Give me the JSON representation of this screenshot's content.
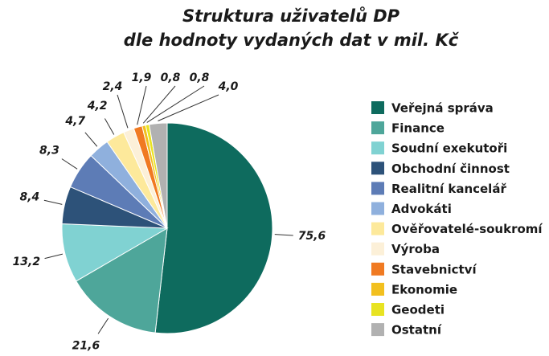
{
  "chart_data": {
    "type": "pie",
    "title": "Struktura uživatelů DP",
    "subtitle": "dle hodnoty vydaných dat v mil. Kč",
    "categories": [
      "Veřejná správa",
      "Finance",
      "Soudní exekutoři",
      "Obchodní činnost",
      "Realitní kancelář",
      "Advokáti",
      "Ověřovatelé-soukromí",
      "Výroba",
      "Stavebnictví",
      "Ekonomie",
      "Geodeti",
      "Ostatní"
    ],
    "values": [
      75.6,
      21.6,
      13.2,
      8.4,
      8.3,
      4.7,
      4.2,
      2.4,
      1.9,
      0.8,
      0.8,
      4.0
    ],
    "value_labels": [
      "75,6",
      "21,6",
      "13,2",
      "8,4",
      "8,3",
      "4,7",
      "4,2",
      "2,4",
      "1,9",
      "0,8",
      "0,8",
      "4,0"
    ],
    "colors": [
      "#0e6b5e",
      "#4ea69a",
      "#80d2d2",
      "#2d5279",
      "#5d7cb6",
      "#8fb0dd",
      "#fde99b",
      "#fcf0d8",
      "#f07a22",
      "#f2c01f",
      "#e8e322",
      "#b1b1b1"
    ],
    "legend": "right"
  }
}
